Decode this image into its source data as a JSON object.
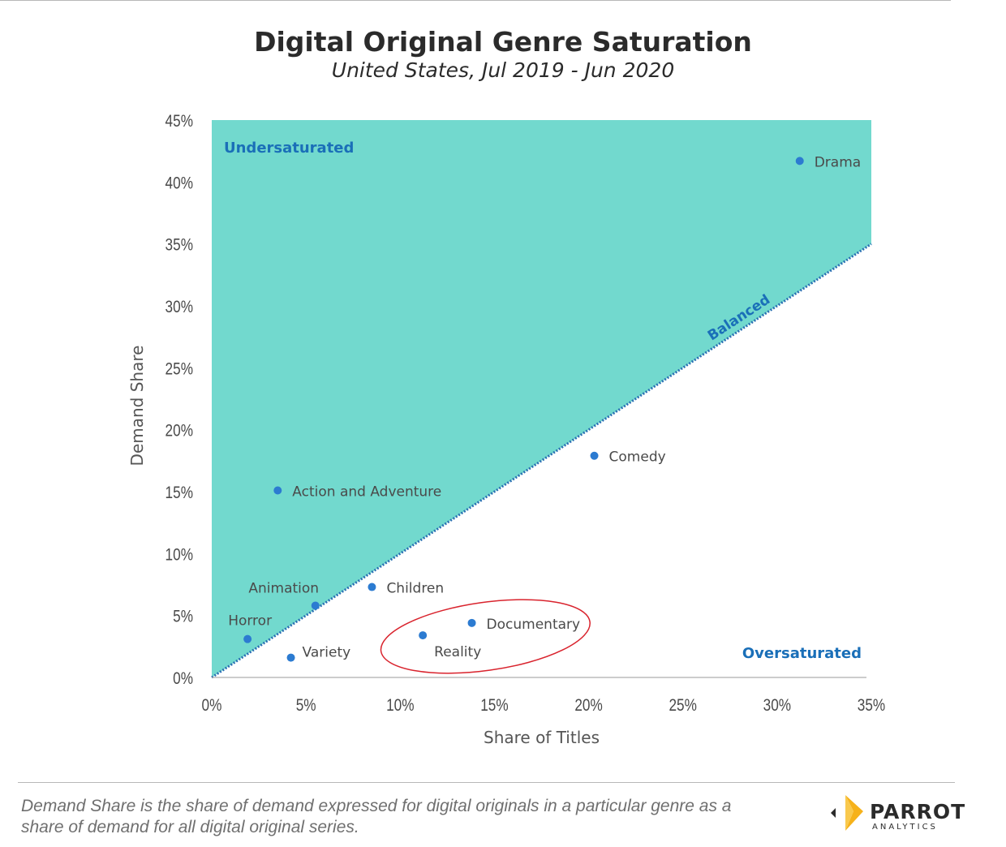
{
  "chart_data": {
    "type": "scatter",
    "title": "Digital Original Genre Saturation",
    "subtitle": "United States, Jul 2019 - Jun 2020",
    "xlabel": "Share of Titles",
    "ylabel": "Demand Share",
    "xlim": [
      0,
      35
    ],
    "ylim": [
      0,
      45
    ],
    "x_ticks": [
      0,
      5,
      10,
      15,
      20,
      25,
      30,
      35
    ],
    "y_ticks": [
      0,
      5,
      10,
      15,
      20,
      25,
      30,
      35,
      40,
      45
    ],
    "x_tick_labels": [
      "0%",
      "5%",
      "10%",
      "15%",
      "20%",
      "25%",
      "30%",
      "35%"
    ],
    "y_tick_labels": [
      "0%",
      "5%",
      "10%",
      "15%",
      "20%",
      "25%",
      "30%",
      "35%",
      "40%",
      "45%"
    ],
    "grid": false,
    "points": [
      {
        "label": "Drama",
        "x": 31.2,
        "y": 41.7
      },
      {
        "label": "Comedy",
        "x": 20.3,
        "y": 17.9
      },
      {
        "label": "Action and Adventure",
        "x": 3.5,
        "y": 15.1
      },
      {
        "label": "Children",
        "x": 8.5,
        "y": 7.3
      },
      {
        "label": "Animation",
        "x": 5.5,
        "y": 5.8
      },
      {
        "label": "Documentary",
        "x": 13.8,
        "y": 4.4
      },
      {
        "label": "Reality",
        "x": 11.2,
        "y": 3.4
      },
      {
        "label": "Horror",
        "x": 1.9,
        "y": 3.1
      },
      {
        "label": "Variety",
        "x": 4.2,
        "y": 1.6
      }
    ],
    "reference_line": {
      "label": "Balanced",
      "from": [
        0,
        0
      ],
      "to": [
        35,
        35
      ]
    },
    "region_labels": {
      "upper": "Undersaturated",
      "lower": "Oversaturated"
    },
    "highlighted": [
      "Reality",
      "Documentary"
    ],
    "colors": {
      "region_fill": "#72d9ce",
      "point": "#2c7bd1",
      "reference_line": "#2a6fb3",
      "region_label": "#1a6fb8",
      "highlight_ellipse": "#d9232d"
    }
  },
  "footnote": "Demand Share is the share of demand expressed for digital originals in a particular genre as a share of demand for all digital original series.",
  "logo": {
    "name": "PARROT",
    "sub": "ANALYTICS"
  }
}
